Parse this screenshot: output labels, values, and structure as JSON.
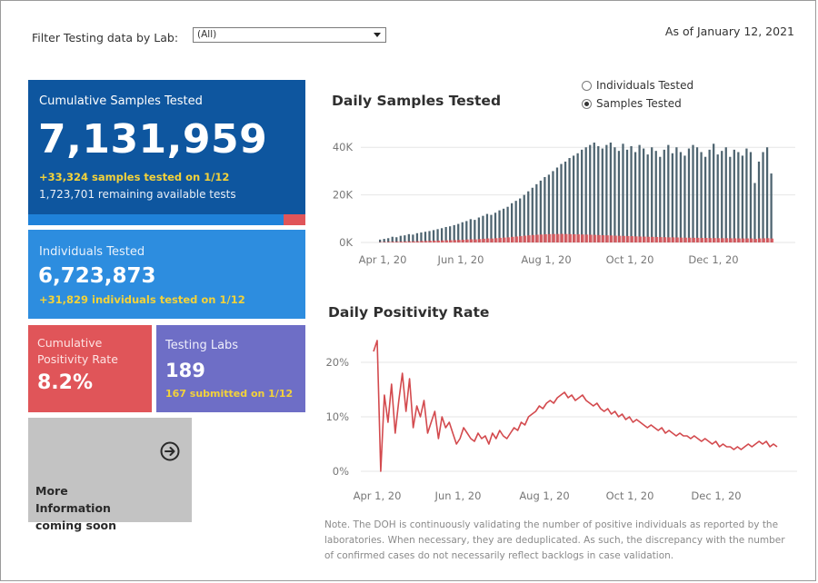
{
  "filter": {
    "label": "Filter Testing data by Lab:",
    "selected": "(All)"
  },
  "as_of": "As of January 12, 2021",
  "cards": {
    "cumulative": {
      "title": "Cumulative Samples Tested",
      "value": "7,131,959",
      "delta": "+33,324 samples tested on 1/12",
      "remaining": "1,723,701 remaining available tests",
      "bar_remaining_fraction": 0.08
    },
    "individuals": {
      "title": "Individuals Tested",
      "value": "6,723,873",
      "delta": "+31,829  individuals  tested on 1/12"
    },
    "positivity": {
      "title": "Cumulative Positivity Rate",
      "value": "8.2%"
    },
    "labs": {
      "title": "Testing Labs",
      "value": "189",
      "delta": "167 submitted on 1/12"
    },
    "more": {
      "title": "More Information coming soon",
      "icon": "arrow-circle-right-icon"
    }
  },
  "colors": {
    "samples": "#4e6470",
    "positive": "#e05559",
    "line": "#d34a4e",
    "cum_card": "#0e569f",
    "ind_card": "#2d8ddf",
    "pos_card": "#e05559",
    "labs_card": "#6e6ec6",
    "more_card": "#c3c3c3"
  },
  "toggle": {
    "options": [
      "Individuals Tested",
      "Samples Tested"
    ],
    "selected": "Samples Tested"
  },
  "note": "Note. The DOH is continuously validating the number of positive individuals as reported by the laboratories. When necessary, they are deduplicated. As such, the discrepancy with the number of confirmed cases do not necessarily reflect backlogs in case validation.",
  "chart_data": [
    {
      "type": "bar",
      "title": "Daily Samples Tested",
      "x_ticks": [
        "Apr 1, 20",
        "Jun 1, 20",
        "Aug 1, 20",
        "Oct 1, 20",
        "Dec 1, 20"
      ],
      "y_ticks": [
        "0K",
        "20K",
        "40K"
      ],
      "ylim": [
        0,
        42000
      ],
      "x_start": "Mar 15, 20",
      "x_end": "Jan 12, 21",
      "grid": true,
      "series": [
        {
          "values": [
            1200,
            1500,
            1800,
            2400,
            2200,
            2800,
            3000,
            3500,
            3300,
            3900,
            4200,
            4500,
            4800,
            5200,
            5600,
            6000,
            6500,
            6800,
            7300,
            7800,
            8500,
            9000,
            9800,
            9500,
            10500,
            11200,
            12000,
            11600,
            12500,
            13500,
            14200,
            15000,
            16500,
            17500,
            18500,
            20000,
            21500,
            23000,
            24500,
            26000,
            27500,
            28500,
            30000,
            31500,
            33000,
            34000,
            35500,
            36500,
            37500,
            39000,
            40000,
            41000,
            42000,
            40500,
            39500,
            41000,
            42000,
            40000,
            38500,
            41500,
            39000,
            40500,
            38000,
            41000,
            39500,
            37000,
            40000,
            38500,
            36000,
            39000,
            41000,
            37500,
            40000,
            38000,
            36500,
            39500,
            41000,
            40000,
            38000,
            36000,
            39000,
            41500,
            37000,
            38500,
            40000,
            36000,
            39000,
            38000,
            36500,
            39500,
            38000,
            25000,
            34000,
            38000,
            40000,
            29000
          ]
        },
        {
          "values": [
            150,
            200,
            250,
            300,
            300,
            350,
            400,
            450,
            450,
            500,
            600,
            650,
            700,
            750,
            800,
            850,
            900,
            950,
            1000,
            1050,
            1150,
            1250,
            1350,
            1300,
            1450,
            1550,
            1700,
            1650,
            1800,
            1950,
            2050,
            2150,
            2350,
            2500,
            2650,
            2850,
            3000,
            3150,
            3250,
            3350,
            3450,
            3500,
            3550,
            3550,
            3600,
            3550,
            3500,
            3450,
            3400,
            3350,
            3300,
            3250,
            3200,
            3100,
            3050,
            3000,
            2950,
            2850,
            2800,
            2750,
            2700,
            2650,
            2550,
            2500,
            2450,
            2400,
            2350,
            2300,
            2250,
            2200,
            2150,
            2150,
            2100,
            2050,
            2000,
            2000,
            1950,
            1950,
            1900,
            1900,
            1850,
            1850,
            1800,
            1800,
            1800,
            1750,
            1750,
            1700,
            1700,
            1700,
            1700,
            1500,
            1700,
            1750,
            1800,
            1650
          ]
        }
      ]
    },
    {
      "type": "line",
      "title": "Daily Positivity Rate",
      "x_ticks": [
        "Apr 1, 20",
        "Jun 1, 20",
        "Aug 1, 20",
        "Oct 1, 20",
        "Dec 1, 20"
      ],
      "y_ticks": [
        "0%",
        "10%",
        "20%"
      ],
      "ylim": [
        0,
        24
      ],
      "x_start": "Mar 15, 20",
      "x_end": "Jan 12, 21",
      "grid": true,
      "series": [
        {
          "values": [
            22,
            24,
            0,
            14,
            9,
            16,
            7,
            13,
            18,
            11,
            17,
            8,
            12,
            10,
            13,
            7,
            9,
            11,
            6,
            10,
            8,
            9,
            7,
            5,
            6,
            8,
            7,
            6,
            5.5,
            7,
            6,
            6.5,
            5,
            7,
            6,
            7.5,
            6.5,
            6,
            7,
            8,
            7.5,
            9,
            8.5,
            10,
            10.5,
            11,
            12,
            11.5,
            12.5,
            13,
            12.5,
            13.5,
            14,
            14.5,
            13.5,
            14,
            13,
            13.5,
            14,
            13,
            12.5,
            12,
            12.5,
            11.5,
            11,
            11.5,
            10.5,
            11,
            10,
            10.5,
            9.5,
            10,
            9,
            9.5,
            9,
            8.5,
            8,
            8.5,
            8,
            7.5,
            8,
            7,
            7.5,
            7,
            6.5,
            7,
            6.5,
            6.5,
            6,
            6.5,
            6,
            5.5,
            6,
            5.5,
            5,
            5.5,
            4.5,
            5,
            4.5,
            4.5,
            4,
            4.5,
            4,
            4.5,
            5,
            4.5,
            5,
            5.5,
            5,
            5.5,
            4.5,
            5,
            4.5
          ]
        }
      ]
    }
  ]
}
